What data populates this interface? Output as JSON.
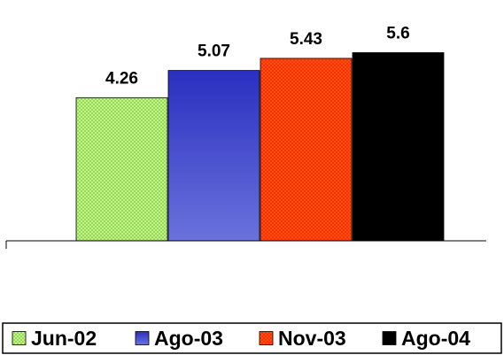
{
  "chart_data": {
    "type": "bar",
    "title": "",
    "xlabel": "",
    "ylabel": "",
    "ylim": [
      0,
      6
    ],
    "grid": false,
    "legend_position": "bottom",
    "series": [
      {
        "name": "Jun-02",
        "value": 4.26,
        "value_label": "4.26",
        "color": "#b6f07a",
        "pattern": "crosshatch"
      },
      {
        "name": "Ago-03",
        "value": 5.07,
        "value_label": "5.07",
        "color": "#3a3fc8",
        "pattern": "gradient"
      },
      {
        "name": "Nov-03",
        "value": 5.43,
        "value_label": "5.43",
        "color": "#ff4a10",
        "pattern": "crosshatch"
      },
      {
        "name": "Ago-04",
        "value": 5.6,
        "value_label": "5.6",
        "color": "#000000",
        "pattern": "solid"
      }
    ]
  }
}
